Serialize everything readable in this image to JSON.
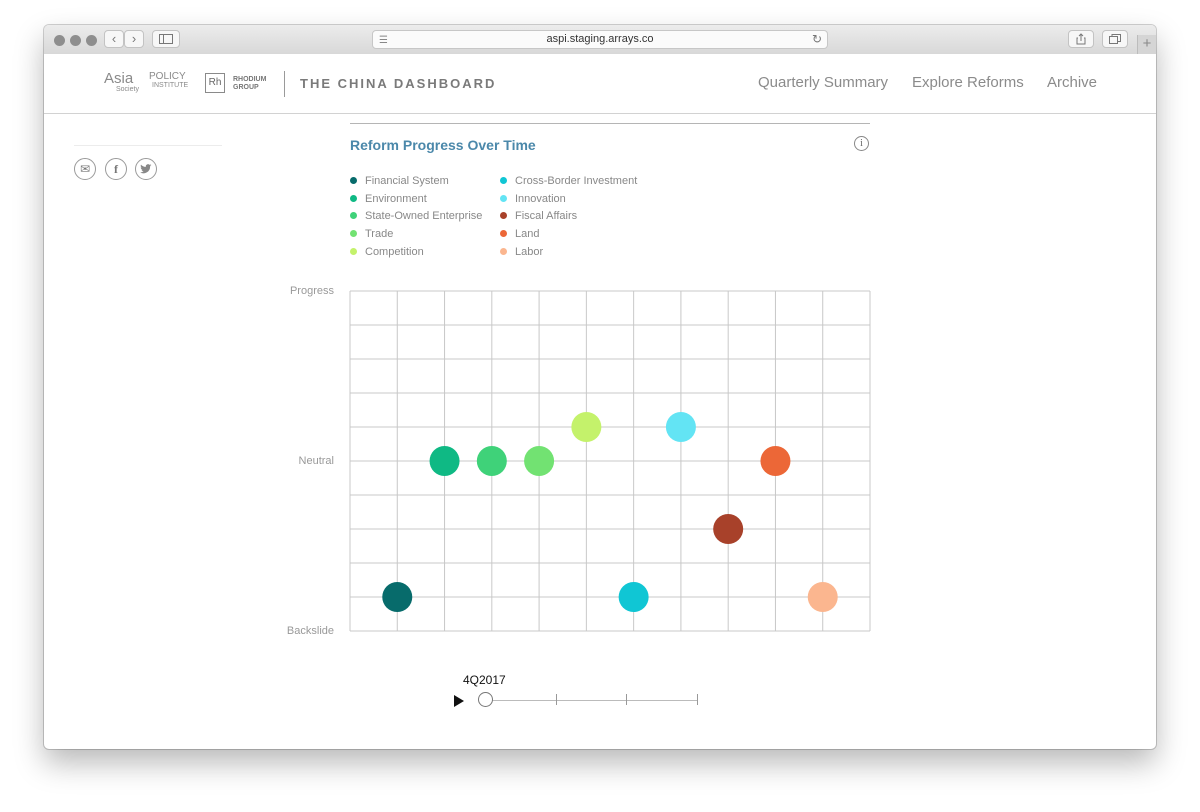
{
  "browser": {
    "url": "aspi.staging.arrays.co",
    "back_symbol": "‹",
    "forward_symbol": "›",
    "icons": [
      "sidebar-icon",
      "reader-icon",
      "reload-icon",
      "share-icon",
      "tabs-icon",
      "new-tab-icon"
    ]
  },
  "header": {
    "asia_society": "Asia",
    "policy": "POLICY",
    "society": "Society",
    "institute": "INSTITUTE",
    "rh_mark": "Rh",
    "rhodium_1": "RHODIUM",
    "rhodium_2": "GROUP",
    "dashboard_title": "THE CHINA DASHBOARD",
    "nav": [
      "Quarterly Summary",
      "Explore Reforms",
      "Archive"
    ]
  },
  "share": {
    "icons": [
      "email-icon",
      "facebook-icon",
      "twitter-icon"
    ],
    "facebook_glyph": "f",
    "email_glyph": "✉"
  },
  "chart_title": "Reform Progress Over Time",
  "info_glyph": "i",
  "colors": {
    "title": "#4b88aa",
    "grid": "#c8c8c8"
  },
  "chart_data": {
    "type": "scatter",
    "title": "Reform Progress Over Time",
    "legend_position": "top-left",
    "grid": true,
    "y_ticks": [
      "Progress",
      "Neutral",
      "Backslide"
    ],
    "y_range": [
      -5,
      5
    ],
    "x_range": [
      0,
      11
    ],
    "series": [
      {
        "name": "Financial System",
        "color": "#076b6b",
        "x": 1,
        "y": -4
      },
      {
        "name": "Environment",
        "color": "#0fb984",
        "x": 2,
        "y": 0
      },
      {
        "name": "State-Owned Enterprise",
        "color": "#3fd279",
        "x": 3,
        "y": 0
      },
      {
        "name": "Trade",
        "color": "#72e272",
        "x": 4,
        "y": 0
      },
      {
        "name": "Competition",
        "color": "#c4f26b",
        "x": 5,
        "y": 1
      },
      {
        "name": "Cross-Border Investment",
        "color": "#10c6d4",
        "x": 6,
        "y": -4
      },
      {
        "name": "Innovation",
        "color": "#63e4f4",
        "x": 7,
        "y": 1
      },
      {
        "name": "Fiscal Affairs",
        "color": "#a8412a",
        "x": 8,
        "y": -2
      },
      {
        "name": "Land",
        "color": "#ec6737",
        "x": 9,
        "y": 0
      },
      {
        "name": "Labor",
        "color": "#fbb68f",
        "x": 10,
        "y": -4
      }
    ]
  },
  "timeline": {
    "quarter": "4Q2017",
    "position": 0
  }
}
